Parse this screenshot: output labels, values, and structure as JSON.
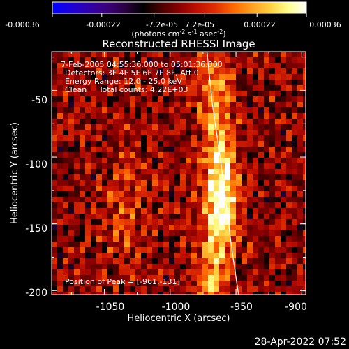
{
  "colorbar": {
    "tick_labels": [
      "-0.00036",
      "-0.00022",
      "-7.2e-05",
      "7.2e-05",
      "0.00022",
      "0.00036"
    ],
    "tick_values": [
      -0.00036,
      -0.00022,
      -7.2e-05,
      7.2e-05,
      0.00022,
      0.00036
    ],
    "range": [
      -0.00036,
      0.00036
    ],
    "units_html": "(photons cm<tspan baseline-shift=\"super\" font-size=\"8\">-2</tspan> s<tspan baseline-shift=\"super\" font-size=\"8\">-1</tspan> asec<tspan baseline-shift=\"super\" font-size=\"8\">-2</tspan>)",
    "colormap": [
      "#0000ff",
      "#1d00d8",
      "#3000a8",
      "#3a007a",
      "#2a0040",
      "#000000",
      "#4a0000",
      "#8a0000",
      "#c01000",
      "#e03000",
      "#ff6a00",
      "#ffa020",
      "#ffd040",
      "#ffff90",
      "#ffffff"
    ]
  },
  "chart_data": {
    "type": "heatmap",
    "title": "Reconstructed RHESSI Image",
    "xlabel": "Heliocentric X (arcsec)",
    "ylabel": "Heliocentric Y (arcsec)",
    "xlim": [
      -1090,
      -897
    ],
    "ylim": [
      -203,
      -21
    ],
    "x_ticks": [
      -1050,
      -1000,
      -950,
      -900
    ],
    "x_tick_labels": [
      "-1050",
      "-1000",
      "-950",
      "-900"
    ],
    "y_ticks": [
      -50,
      -100,
      -150,
      -200
    ],
    "y_tick_labels": [
      "-50",
      "-100",
      "-150",
      "-200"
    ],
    "annotations": [
      "7-Feb-2005 04:55:36.000 to 05:01:36.000",
      "Detectors: 3F 4F 5F 6F 7F 8F, Att 0",
      "Energy Range: 12.0 - 25.0 keV",
      "Clean     Total counts: 4.22E+03"
    ],
    "peak_label": "Position of Peak = [-961,-131]",
    "peak": [
      -961,
      -131
    ],
    "emission_ridge": [
      [
        -965,
        -75
      ],
      [
        -963,
        -100
      ],
      [
        -962,
        -131
      ],
      [
        -964,
        -160
      ],
      [
        -968,
        -190
      ]
    ],
    "limb_curve": [
      [
        -972,
        -21
      ],
      [
        -968,
        -60
      ],
      [
        -962,
        -100
      ],
      [
        -958,
        -131
      ],
      [
        -953,
        -170
      ],
      [
        -948,
        -203
      ]
    ]
  },
  "timestamp": "28-Apr-2022 07:52"
}
